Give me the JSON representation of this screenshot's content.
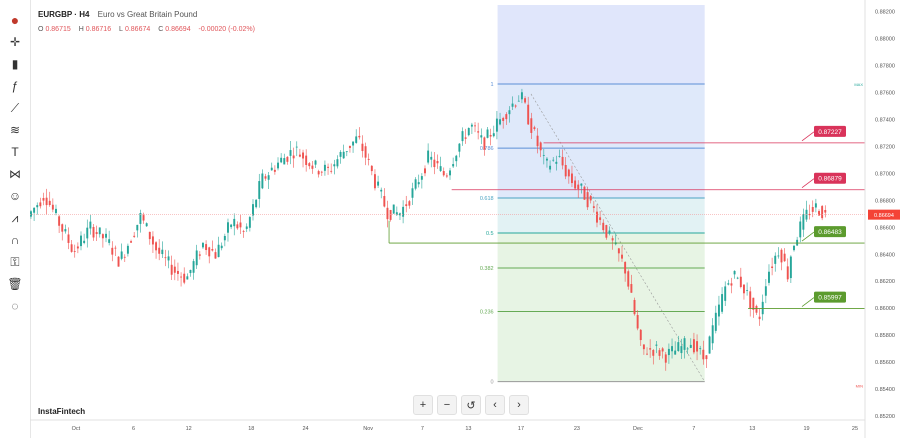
{
  "header": {
    "symbol": "EURGBP · H4",
    "description": "Euro vs Great Britain Pound"
  },
  "ohlc": {
    "o_label": "O",
    "o": "0.86715",
    "h_label": "H",
    "h": "0.86716",
    "l_label": "L",
    "l": "0.86674",
    "c_label": "C",
    "c": "0.86694",
    "change": "-0.00020 (-0.02%)"
  },
  "brand": "InstaFintech",
  "nav": {
    "zoom_in": "+",
    "zoom_out": "−",
    "reset": "↺",
    "prev": "‹",
    "next": "›"
  },
  "toolbar_icons": [
    "logo-icon",
    "crosshair-icon",
    "bar-type-icon",
    "indicators-icon",
    "trend-line-icon",
    "fib-tool-icon",
    "text-icon",
    "pattern-icon",
    "smiley-icon",
    "forecast-icon",
    "magnet-icon",
    "lock-icon",
    "trash-icon",
    "hide-icon"
  ],
  "colors": {
    "up": "#26a69a",
    "down": "#ef5350",
    "fib_band": "#dde3fb",
    "fib_lower": "#e6f4e6",
    "red_tag": "#d9335a",
    "green_tag": "#5c9b2e",
    "price_tag": "#f44336"
  },
  "chart_data": {
    "type": "candlestick",
    "y_ticks": [
      "0.88200",
      "0.88000",
      "0.87800",
      "0.87600",
      "0.87400",
      "0.87200",
      "0.87000",
      "0.86800",
      "0.86600",
      "0.86400",
      "0.86200",
      "0.86000",
      "0.85800",
      "0.85600",
      "0.85400",
      "0.85200"
    ],
    "ylim": [
      0.8517,
      0.8825
    ],
    "x_ticks": [
      "Oct",
      "6",
      "12",
      "18",
      "24",
      "Nov",
      "7",
      "13",
      "17",
      "23",
      "Dec",
      "7",
      "13",
      "19",
      "25"
    ],
    "x_tick_fracs": [
      0.055,
      0.124,
      0.19,
      0.265,
      0.33,
      0.405,
      0.47,
      0.525,
      0.588,
      0.655,
      0.728,
      0.795,
      0.865,
      0.93,
      0.988
    ],
    "fib_levels": [
      {
        "label": "1",
        "value": 0.87664,
        "color": "#5b8fd6"
      },
      {
        "label": "0.786",
        "value": 0.87188,
        "color": "#5b8fd6"
      },
      {
        "label": "0.618",
        "value": 0.86818,
        "color": "#4aa3c2"
      },
      {
        "label": "0.5",
        "value": 0.86558,
        "color": "#26a69a"
      },
      {
        "label": "0.382",
        "value": 0.86298,
        "color": "#66aa55"
      },
      {
        "label": "0.236",
        "value": 0.85975,
        "color": "#66aa55"
      },
      {
        "label": "0",
        "value": 0.85455,
        "color": "#999999"
      }
    ],
    "fib_x_range": [
      0.56,
      0.808
    ],
    "fib_tags": {
      "max": "MAX",
      "min": "MIN"
    },
    "levels": [
      {
        "value": 0.87227,
        "label": "0.87227",
        "side": "resistance",
        "color": "#d9335a"
      },
      {
        "value": 0.86879,
        "label": "0.86879",
        "side": "resistance",
        "color": "#d9335a"
      },
      {
        "value": 0.86483,
        "label": "0.86483",
        "side": "support",
        "color": "#5c9b2e"
      },
      {
        "value": 0.85997,
        "label": "0.85997",
        "side": "support",
        "color": "#5c9b2e"
      }
    ],
    "last_price": {
      "value": 0.86694,
      "label": "0.86694"
    },
    "path": [
      [
        0,
        0.8668
      ],
      [
        0.02,
        0.8685
      ],
      [
        0.04,
        0.866
      ],
      [
        0.055,
        0.8642
      ],
      [
        0.075,
        0.866
      ],
      [
        0.095,
        0.865
      ],
      [
        0.11,
        0.8635
      ],
      [
        0.135,
        0.8668
      ],
      [
        0.155,
        0.8642
      ],
      [
        0.175,
        0.8628
      ],
      [
        0.19,
        0.8622
      ],
      [
        0.21,
        0.8648
      ],
      [
        0.225,
        0.864
      ],
      [
        0.245,
        0.8665
      ],
      [
        0.26,
        0.8655
      ],
      [
        0.28,
        0.8695
      ],
      [
        0.3,
        0.8708
      ],
      [
        0.32,
        0.8718
      ],
      [
        0.345,
        0.8704
      ],
      [
        0.36,
        0.8702
      ],
      [
        0.38,
        0.8718
      ],
      [
        0.395,
        0.8726
      ],
      [
        0.405,
        0.8712
      ],
      [
        0.415,
        0.8695
      ],
      [
        0.43,
        0.8672
      ],
      [
        0.445,
        0.867
      ],
      [
        0.46,
        0.8685
      ],
      [
        0.48,
        0.8712
      ],
      [
        0.5,
        0.8698
      ],
      [
        0.515,
        0.872
      ],
      [
        0.53,
        0.8736
      ],
      [
        0.545,
        0.8722
      ],
      [
        0.56,
        0.8735
      ],
      [
        0.575,
        0.8748
      ],
      [
        0.59,
        0.8758
      ],
      [
        0.6,
        0.874
      ],
      [
        0.61,
        0.8722
      ],
      [
        0.62,
        0.8705
      ],
      [
        0.635,
        0.8712
      ],
      [
        0.65,
        0.8695
      ],
      [
        0.665,
        0.8686
      ],
      [
        0.675,
        0.8676
      ],
      [
        0.69,
        0.866
      ],
      [
        0.7,
        0.8648
      ],
      [
        0.715,
        0.863
      ],
      [
        0.725,
        0.86
      ],
      [
        0.735,
        0.8568
      ],
      [
        0.75,
        0.857
      ],
      [
        0.765,
        0.8565
      ],
      [
        0.78,
        0.857
      ],
      [
        0.795,
        0.8575
      ],
      [
        0.81,
        0.8562
      ],
      [
        0.822,
        0.8588
      ],
      [
        0.835,
        0.8615
      ],
      [
        0.845,
        0.8625
      ],
      [
        0.855,
        0.8618
      ],
      [
        0.865,
        0.8605
      ],
      [
        0.875,
        0.859
      ],
      [
        0.885,
        0.8625
      ],
      [
        0.9,
        0.8645
      ],
      [
        0.91,
        0.8625
      ],
      [
        0.915,
        0.8645
      ],
      [
        0.925,
        0.866
      ],
      [
        0.935,
        0.8672
      ],
      [
        0.945,
        0.8675
      ],
      [
        0.955,
        0.8669
      ]
    ]
  }
}
